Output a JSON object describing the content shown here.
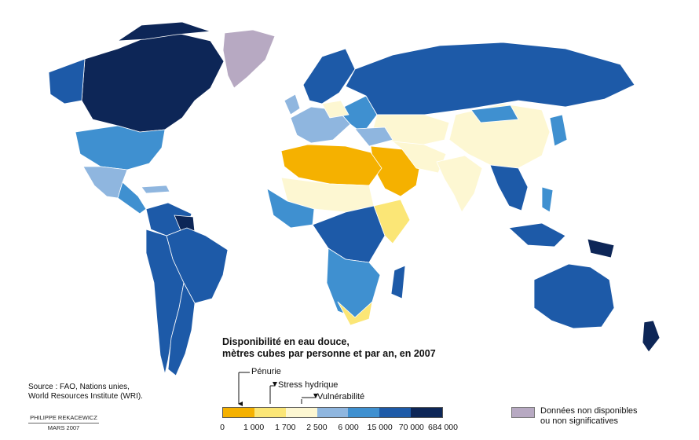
{
  "legend": {
    "title_line1": "Disponibilité en eau douce,",
    "title_line2": "mètres cubes par personne et par an, en 2007",
    "ticks": [
      "0",
      "1 000",
      "1 700",
      "2 500",
      "6 000",
      "15 000",
      "70 000",
      "684 000"
    ],
    "classes": [
      {
        "range": [
          0,
          1000
        ],
        "color": "#f5b100"
      },
      {
        "range": [
          1000,
          1700
        ],
        "color": "#fbe676"
      },
      {
        "range": [
          1700,
          2500
        ],
        "color": "#fdf7d2"
      },
      {
        "range": [
          2500,
          6000
        ],
        "color": "#8fb6df"
      },
      {
        "range": [
          6000,
          15000
        ],
        "color": "#3f90d0"
      },
      {
        "range": [
          15000,
          70000
        ],
        "color": "#1d5aa8"
      },
      {
        "range": [
          70000,
          684000
        ],
        "color": "#0d2657"
      }
    ],
    "thresholds": [
      {
        "label": "Pénurie",
        "value": 1000
      },
      {
        "label": "Stress hydrique",
        "value": 1700
      },
      {
        "label": "Vulnérabilité",
        "value": 2500
      }
    ],
    "no_data_line1": "Données non disponibles",
    "no_data_line2": "ou non significatives",
    "no_data_color": "#b7a9c2"
  },
  "source_line1": "Source : FAO, Nations unies,",
  "source_line2": "World Resources Institute (WRI).",
  "author_name": "PHILIPPE REKACEWICZ",
  "author_date": "MARS 2007"
}
